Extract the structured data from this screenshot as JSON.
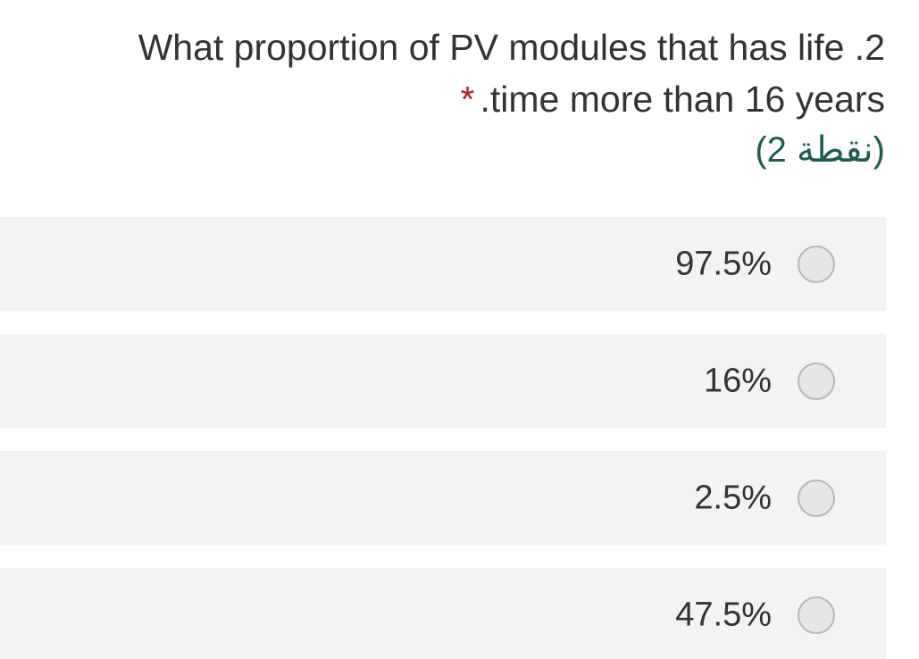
{
  "question": {
    "line1": "What proportion of PV modules that has life .2",
    "line2": ".time more than 16 years",
    "required_mark": "*",
    "points": "(2 نقطة)"
  },
  "options": [
    {
      "label": "97.5%"
    },
    {
      "label": "16%"
    },
    {
      "label": "2.5%"
    },
    {
      "label": "47.5%"
    }
  ]
}
